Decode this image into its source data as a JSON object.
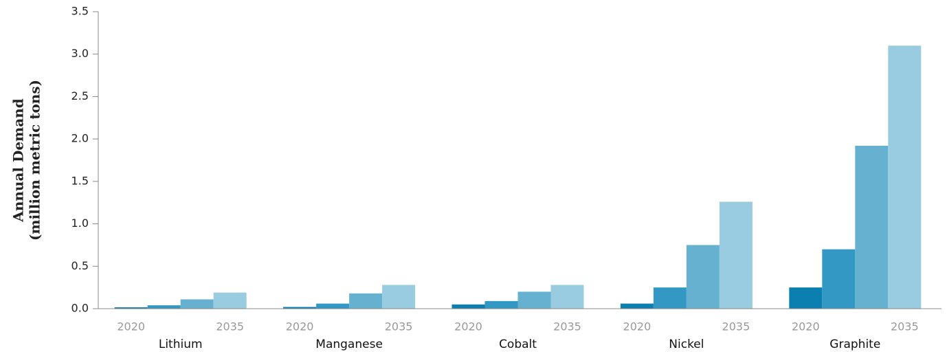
{
  "chart_data": {
    "type": "bar",
    "ylabel": [
      "Annual Demand",
      "(million metric tons)"
    ],
    "categories": [
      "Lithium",
      "Manganese",
      "Cobalt",
      "Nickel",
      "Graphite"
    ],
    "bar_labels": [
      "2020",
      null,
      null,
      "2035"
    ],
    "series": [
      {
        "color": "#0a7fb0",
        "values": [
          0.016,
          0.02,
          0.05,
          0.06,
          0.25
        ]
      },
      {
        "color": "#3399c4",
        "values": [
          0.04,
          0.06,
          0.09,
          0.25,
          0.7
        ]
      },
      {
        "color": "#66b0d0",
        "values": [
          0.11,
          0.18,
          0.2,
          0.75,
          1.92
        ]
      },
      {
        "color": "#99cce0",
        "values": [
          0.19,
          0.28,
          0.28,
          1.26,
          3.1
        ]
      }
    ],
    "ylim": [
      0,
      3.5
    ],
    "yticks": [
      {
        "value": 0,
        "label": "0.0"
      },
      0.5,
      {
        "value": 1,
        "label": "1.0"
      },
      1.5,
      {
        "value": 2,
        "label": "2.0"
      },
      2.5,
      {
        "value": 3,
        "label": "3.0"
      },
      3.5
    ]
  }
}
